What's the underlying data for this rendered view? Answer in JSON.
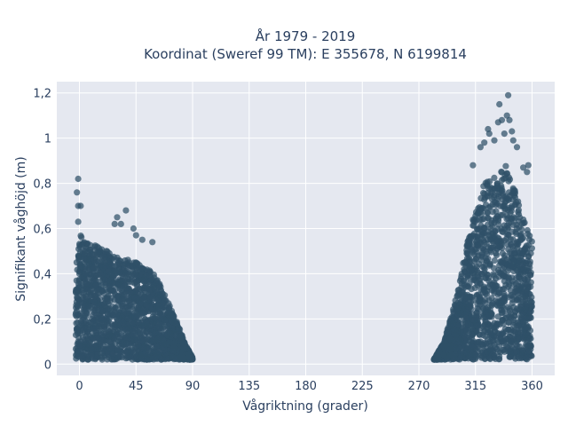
{
  "chart_data": {
    "type": "scatter",
    "title_lines": [
      "År 1979 - 2019",
      "Koordinat (Sweref 99 TM): E 355678, N 6199814"
    ],
    "xlabel": "Vågriktning (grader)",
    "ylabel": "Signifikant våghöjd (m)",
    "xlim": [
      -18,
      378
    ],
    "ylim": [
      -0.05,
      1.25
    ],
    "x_ticks": [
      0,
      45,
      90,
      135,
      180,
      225,
      270,
      315,
      360
    ],
    "x_tick_labels": [
      "0",
      "45",
      "90",
      "135",
      "180",
      "225",
      "270",
      "315",
      "360"
    ],
    "y_ticks": [
      0,
      0.2,
      0.4,
      0.6,
      0.8,
      1.0,
      1.2
    ],
    "y_tick_labels": [
      "0",
      "0,2",
      "0,4",
      "0,6",
      "0,8",
      "1",
      "1,2"
    ],
    "grid": true,
    "marker_color": "#2f5068",
    "background_color": "#e5e8f0",
    "series": [
      {
        "name": "",
        "clusters": [
          {
            "x_range": [
              -3,
              90
            ],
            "profile": [
              [
                -3,
                0.5
              ],
              [
                0,
                0.58
              ],
              [
                5,
                0.55
              ],
              [
                15,
                0.52
              ],
              [
                30,
                0.48
              ],
              [
                45,
                0.45
              ],
              [
                55,
                0.42
              ],
              [
                62,
                0.38
              ],
              [
                70,
                0.28
              ],
              [
                78,
                0.18
              ],
              [
                85,
                0.08
              ],
              [
                90,
                0.03
              ]
            ]
          },
          {
            "x_range": [
              282,
              360
            ],
            "profile": [
              [
                282,
                0.02
              ],
              [
                290,
                0.1
              ],
              [
                296,
                0.22
              ],
              [
                302,
                0.35
              ],
              [
                307,
                0.5
              ],
              [
                312,
                0.62
              ],
              [
                317,
                0.72
              ],
              [
                322,
                0.8
              ],
              [
                328,
                0.82
              ],
              [
                335,
                0.86
              ],
              [
                340,
                0.88
              ],
              [
                345,
                0.8
              ],
              [
                350,
                0.7
              ],
              [
                355,
                0.62
              ],
              [
                360,
                0.55
              ]
            ]
          }
        ],
        "outliers": [
          [
            -1,
            0.82
          ],
          [
            -2,
            0.76
          ],
          [
            -1,
            0.7
          ],
          [
            1,
            0.7
          ],
          [
            -1,
            0.63
          ],
          [
            28,
            0.62
          ],
          [
            33,
            0.62
          ],
          [
            30,
            0.65
          ],
          [
            37,
            0.68
          ],
          [
            43,
            0.6
          ],
          [
            45,
            0.57
          ],
          [
            50,
            0.55
          ],
          [
            58,
            0.54
          ],
          [
            313,
            0.88
          ],
          [
            319,
            0.96
          ],
          [
            322,
            0.98
          ],
          [
            325,
            1.04
          ],
          [
            326,
            1.02
          ],
          [
            330,
            0.99
          ],
          [
            333,
            1.07
          ],
          [
            336,
            1.08
          ],
          [
            338,
            1.02
          ],
          [
            340,
            1.1
          ],
          [
            342,
            1.08
          ],
          [
            344,
            1.03
          ],
          [
            345,
            0.99
          ],
          [
            348,
            0.96
          ],
          [
            353,
            0.87
          ],
          [
            341,
            1.19
          ],
          [
            334,
            1.15
          ],
          [
            356,
            0.85
          ],
          [
            357,
            0.88
          ]
        ]
      }
    ]
  }
}
